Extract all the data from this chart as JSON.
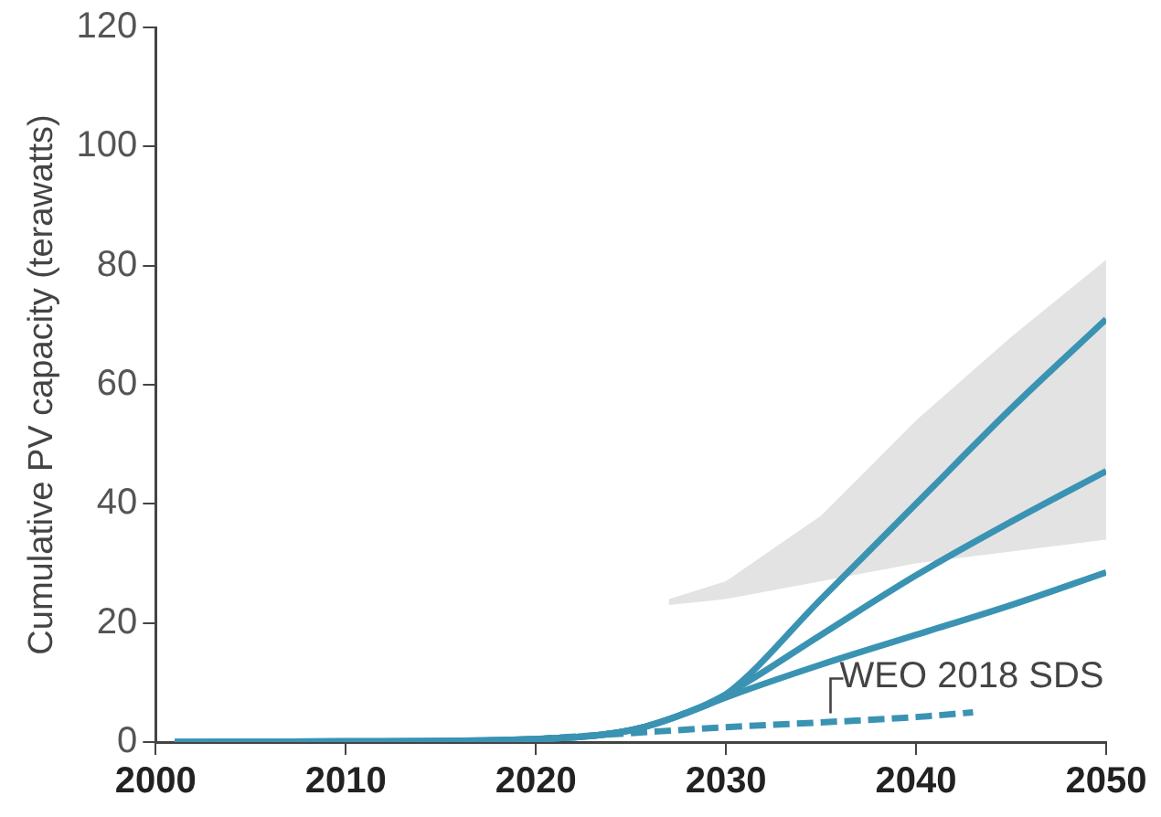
{
  "chart_data": {
    "type": "line",
    "ylabel": "Cumulative PV capacity (terawatts)",
    "xlim": [
      2000,
      2050
    ],
    "xticks": [
      2000,
      2010,
      2020,
      2030,
      2040,
      2050
    ],
    "ylim": [
      0,
      120
    ],
    "yticks": [
      0,
      20,
      40,
      60,
      80,
      100,
      120
    ],
    "grid": false,
    "legend": false,
    "marker": "none",
    "series": [
      {
        "type": "area",
        "color": "#e3e3e3",
        "x": [
          2027,
          2030,
          2035,
          2040,
          2045,
          2050
        ],
        "values": [
          null,
          null,
          null,
          null,
          null,
          null
        ],
        "lower": [
          23,
          24,
          27,
          30,
          32,
          34
        ],
        "upper": [
          24,
          27,
          38,
          54,
          68,
          81
        ]
      },
      {
        "color": "#3a93b3",
        "x": [
          2001,
          2010,
          2020,
          2025,
          2028,
          2030,
          2035,
          2040,
          2045,
          2050
        ],
        "values": [
          0,
          0.1,
          0.5,
          2,
          5,
          8,
          24,
          40,
          56,
          71
        ]
      },
      {
        "color": "#3a93b3",
        "x": [
          2001,
          2010,
          2020,
          2025,
          2028,
          2030,
          2035,
          2040,
          2045,
          2050
        ],
        "values": [
          0,
          0.1,
          0.5,
          2,
          5,
          8,
          18,
          28,
          37,
          45.5
        ]
      },
      {
        "color": "#3a93b3",
        "x": [
          2001,
          2010,
          2020,
          2025,
          2028,
          2030,
          2035,
          2040,
          2045,
          2050
        ],
        "values": [
          0,
          0.1,
          0.5,
          2,
          5,
          7.5,
          13,
          18,
          23,
          28.5
        ]
      },
      {
        "color": "#3a93b3",
        "line_style": "dashed",
        "x": [
          2020,
          2025,
          2030,
          2035,
          2040,
          2043
        ],
        "values": [
          0.5,
          1.5,
          2.5,
          3.3,
          4.2,
          5
        ]
      }
    ],
    "annotations": [
      {
        "text": "WEO 2018 SDS",
        "x": 2035.5,
        "y": 3.3
      }
    ]
  }
}
